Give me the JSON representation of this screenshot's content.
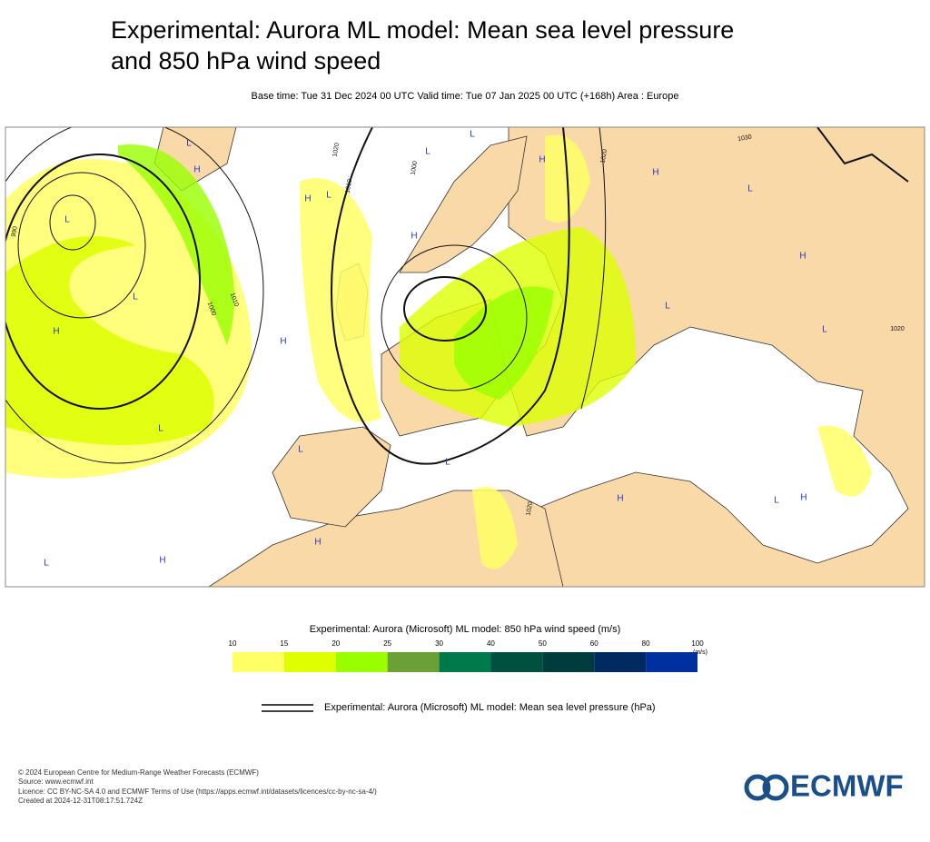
{
  "header": {
    "title_lines": [
      "Experimental: Aurora ML model: Mean sea level pressure",
      "and 850 hPa wind speed"
    ],
    "subtitle": "Base time: Tue 31 Dec 2024 00 UTC Valid time: Tue 07 Jan 2025 00 UTC (+168h) Area : Europe"
  },
  "map": {
    "pressure_centres": [
      "L",
      "H",
      "L",
      "L",
      "H",
      "H",
      "L",
      "L",
      "H",
      "L",
      "H",
      "L",
      "H",
      "H",
      "H",
      "L",
      "L",
      "L",
      "L",
      "L",
      "H",
      "L",
      "H",
      "H",
      "L",
      "H"
    ],
    "isobar_labels": [
      "1020",
      "1010",
      "1000",
      "990",
      "1010",
      "1000",
      "1020",
      "1030",
      "1020",
      "1020"
    ]
  },
  "wind_legend": {
    "title": "Experimental: Aurora (Microsoft) ML model: 850 hPa wind speed (m/s)",
    "bounds": [
      10,
      15,
      20,
      25,
      30,
      40,
      50,
      60,
      80,
      100
    ],
    "unit": "(m/s)",
    "colors": [
      "#ffff66",
      "#ddff00",
      "#99ff00",
      "#6aa035",
      "#007a4a",
      "#005040",
      "#003c3c",
      "#002a60",
      "#0030a0"
    ]
  },
  "pressure_legend": {
    "label": "Experimental: Aurora (Microsoft) ML model: Mean sea level pressure (hPa)"
  },
  "footer": {
    "lines": [
      "© 2024 European Centre for Medium-Range Weather Forecasts (ECMWF)",
      "Source: www.ecmwf.int",
      "Licence: CC BY-NC-SA 4.0 and ECMWF Terms of Use (https://apps.ecmwf.int/datasets/licences/cc-by-nc-sa-4/)",
      "Created at 2024-12-31T08:17:51.724Z"
    ],
    "logo": "ECMWF"
  }
}
